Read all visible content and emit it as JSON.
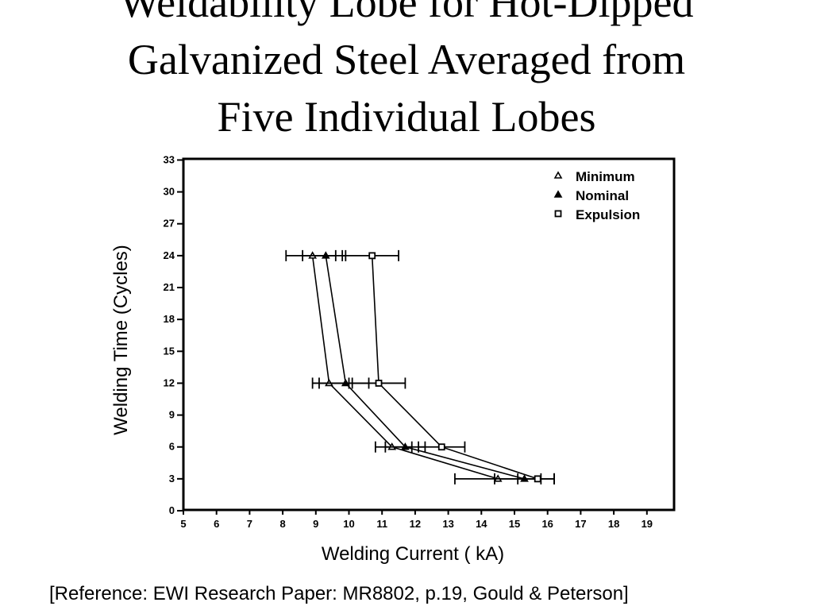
{
  "title_lines": [
    "Weldability Lobe for Hot-Dipped",
    "Galvanized Steel Averaged from",
    "Five Individual Lobes"
  ],
  "reference": "[Reference: EWI Research Paper: MR8802, p.19, Gould & Peterson]",
  "chart_data": {
    "type": "line",
    "xlabel": "Welding Current ( kA)",
    "ylabel": "Welding Time (Cycles)",
    "xlim": [
      5,
      19
    ],
    "ylim": [
      0,
      33
    ],
    "xticks": [
      5,
      6,
      7,
      8,
      9,
      10,
      11,
      12,
      13,
      14,
      15,
      16,
      17,
      18,
      19
    ],
    "yticks": [
      0,
      3,
      6,
      9,
      12,
      15,
      18,
      21,
      24,
      27,
      30,
      33
    ],
    "grid": false,
    "legend_position": "top-right",
    "series": [
      {
        "name": "Minimum",
        "marker": "triangle-open",
        "points": [
          {
            "y": 24,
            "x": 8.9,
            "err": [
              8.1,
              9.6
            ]
          },
          {
            "y": 12,
            "x": 9.4,
            "err": [
              8.9,
              10.0
            ]
          },
          {
            "y": 6,
            "x": 11.3,
            "err": [
              10.8,
              11.9
            ]
          },
          {
            "y": 3,
            "x": 14.5,
            "err": [
              13.2,
              15.8
            ]
          }
        ]
      },
      {
        "name": "Nominal",
        "marker": "triangle-filled",
        "points": [
          {
            "y": 24,
            "x": 9.3,
            "err": [
              8.6,
              9.9
            ]
          },
          {
            "y": 12,
            "x": 9.9,
            "err": [
              9.1,
              10.6
            ]
          },
          {
            "y": 6,
            "x": 11.7,
            "err": [
              11.1,
              12.3
            ]
          },
          {
            "y": 3,
            "x": 15.3,
            "err": [
              14.4,
              16.2
            ]
          }
        ]
      },
      {
        "name": "Expulsion",
        "marker": "square-open",
        "points": [
          {
            "y": 24,
            "x": 10.7,
            "err": [
              9.8,
              11.5
            ]
          },
          {
            "y": 12,
            "x": 10.9,
            "err": [
              10.1,
              11.7
            ]
          },
          {
            "y": 6,
            "x": 12.8,
            "err": [
              12.1,
              13.5
            ]
          },
          {
            "y": 3,
            "x": 15.7,
            "err": [
              15.1,
              16.2
            ]
          }
        ]
      }
    ]
  }
}
